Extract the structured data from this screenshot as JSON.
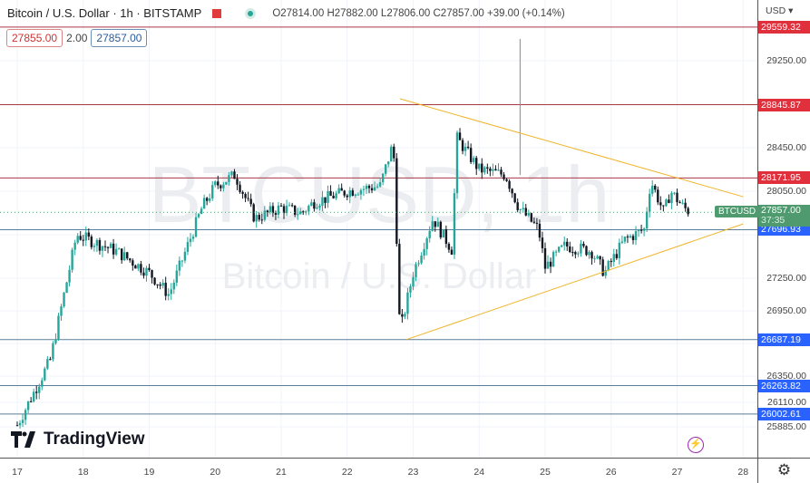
{
  "header": {
    "symbol_title": "Bitcoin / U.S. Dollar · 1h · BITSTAMP",
    "open": "O27814.00",
    "high": "H27882.00",
    "low": "L27806.00",
    "close": "C27857.00",
    "change": "+39.00 (+0.14%)"
  },
  "trade": {
    "sell_price": "27855.00",
    "spread": "2.00",
    "buy_price": "27857.00"
  },
  "watermark": {
    "main": "BTCUSD, 1h",
    "sub": "Bitcoin / U.S. Dollar"
  },
  "price_axis": {
    "currency": "USD ▾",
    "ticks": [
      "29250.00",
      "28450.00",
      "28050.00",
      "27250.00",
      "26950.00",
      "26350.00",
      "26110.00",
      "25885.00"
    ],
    "levels": [
      {
        "value": "29559.32",
        "color": "#e0303c"
      },
      {
        "value": "28845.87",
        "color": "#e0303c"
      },
      {
        "value": "28171.95",
        "color": "#e0303c"
      },
      {
        "value": "27696.93",
        "color": "#2962ff"
      },
      {
        "value": "26687.19",
        "color": "#2962ff"
      },
      {
        "value": "26263.82",
        "color": "#2962ff"
      },
      {
        "value": "26002.61",
        "color": "#2962ff"
      }
    ],
    "current": {
      "symbol": "BTCUSD",
      "price": "27857.00",
      "countdown": "37:35",
      "color": "#4f9a6f"
    }
  },
  "time_axis": {
    "labels": [
      "17",
      "18",
      "19",
      "20",
      "21",
      "22",
      "23",
      "24",
      "25",
      "26",
      "27",
      "28"
    ]
  },
  "logo": "TradingView",
  "chart_data": {
    "type": "candlestick",
    "timeframe": "1h",
    "up_color": "#26a69a",
    "down_color": "#131722",
    "approx_close_path": [
      [
        17.0,
        25900
      ],
      [
        17.5,
        26500
      ],
      [
        17.9,
        27650
      ],
      [
        18.5,
        27500
      ],
      [
        19.0,
        27300
      ],
      [
        19.3,
        27100
      ],
      [
        19.8,
        27900
      ],
      [
        20.0,
        28100
      ],
      [
        20.3,
        28200
      ],
      [
        20.6,
        27800
      ],
      [
        21.0,
        27900
      ],
      [
        21.3,
        27850
      ],
      [
        21.5,
        27950
      ],
      [
        22.0,
        28050
      ],
      [
        22.5,
        28100
      ],
      [
        22.7,
        28500
      ],
      [
        22.8,
        26750
      ],
      [
        23.0,
        27300
      ],
      [
        23.3,
        27800
      ],
      [
        23.6,
        27500
      ],
      [
        23.65,
        28550
      ],
      [
        24.0,
        28250
      ],
      [
        24.4,
        28200
      ],
      [
        24.6,
        27900
      ],
      [
        24.9,
        27700
      ],
      [
        25.0,
        27350
      ],
      [
        25.3,
        27550
      ],
      [
        25.7,
        27500
      ],
      [
        25.9,
        27300
      ],
      [
        26.2,
        27600
      ],
      [
        26.5,
        27700
      ],
      [
        26.6,
        28150
      ],
      [
        26.8,
        27850
      ],
      [
        26.9,
        28050
      ],
      [
        27.1,
        27900
      ],
      [
        27.2,
        27857
      ]
    ],
    "triangle": {
      "upper": [
        [
          22.8,
          28900
        ],
        [
          28.0,
          28000
        ]
      ],
      "lower": [
        [
          22.9,
          26687
        ],
        [
          28.0,
          27750
        ]
      ],
      "color": "#f0b429"
    }
  }
}
